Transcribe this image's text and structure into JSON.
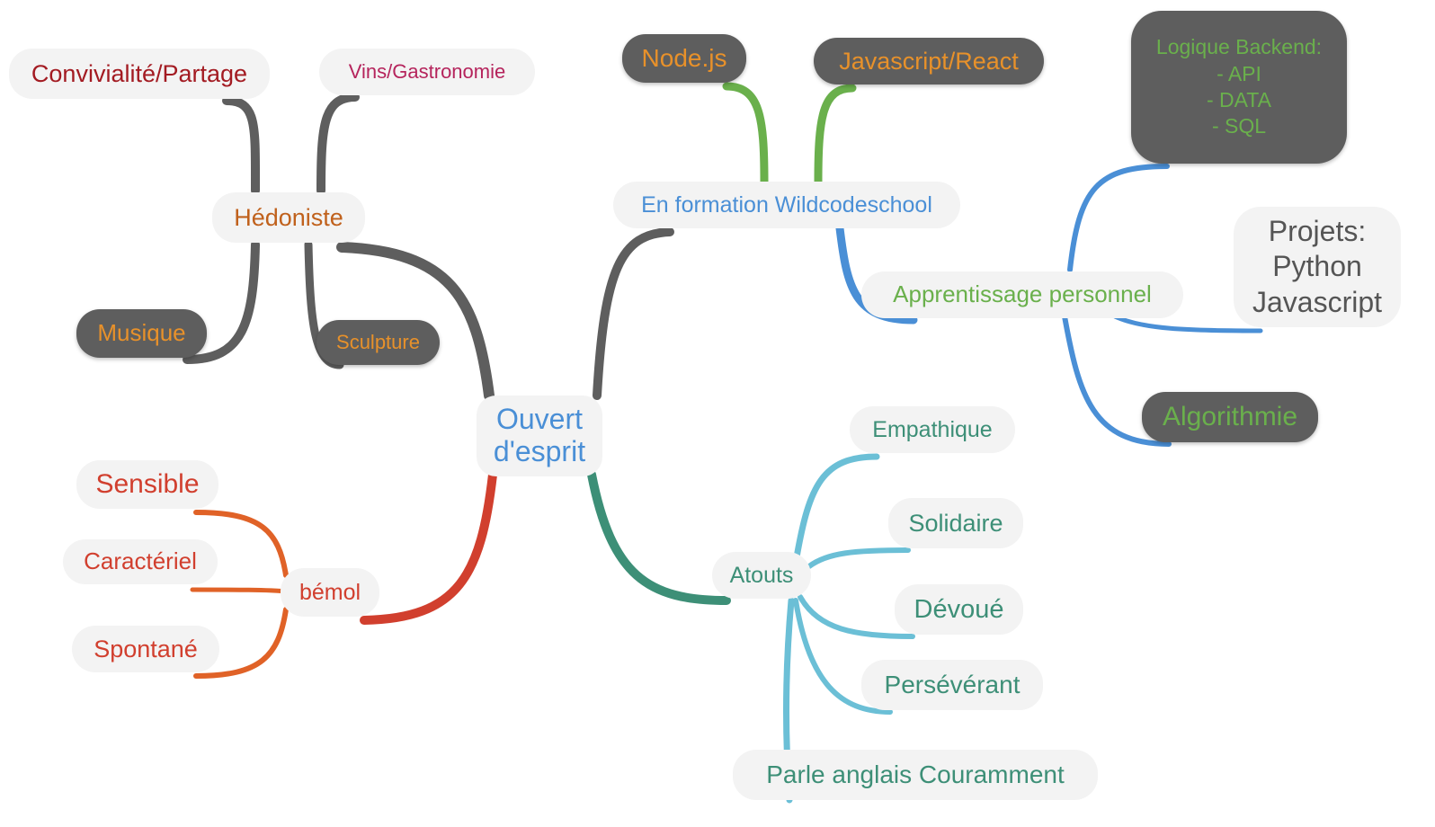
{
  "colors": {
    "center": "#4a8fd6",
    "hedoniste": "#c0611c",
    "dark_red": "#a31b22",
    "magenta": "#b5245c",
    "orange": "#e8912a",
    "green": "#6ab04c",
    "blue": "#4a8fd6",
    "teal": "#3d8f77",
    "red": "#d13f2e",
    "grey_text": "#555555",
    "dark_fill": "#5e5e5e",
    "light_fill": "#f3f3f3"
  },
  "center": {
    "text": [
      "Ouvert",
      "d'esprit"
    ]
  },
  "hedoniste": {
    "label": "Hédoniste",
    "children": [
      "Convivialité/Partage",
      "Vins/Gastronomie",
      "Musique",
      "Sculpture"
    ]
  },
  "formation": {
    "label": "En formation Wildcodeschool",
    "children": [
      "Node.js",
      "Javascript/React"
    ]
  },
  "apprentissage": {
    "label": "Apprentissage personnel",
    "backend": [
      "Logique Backend:",
      "- API",
      "- DATA",
      "- SQL"
    ],
    "projets": [
      "Projets:",
      "Python",
      "Javascript"
    ],
    "algorithmie": "Algorithmie"
  },
  "atouts": {
    "label": "Atouts",
    "children": [
      "Empathique",
      "Solidaire",
      "Dévoué",
      "Persévérant",
      "Parle anglais Couramment"
    ]
  },
  "bemol": {
    "label": "bémol",
    "children": [
      "Sensible",
      "Caractériel",
      "Spontané"
    ]
  }
}
